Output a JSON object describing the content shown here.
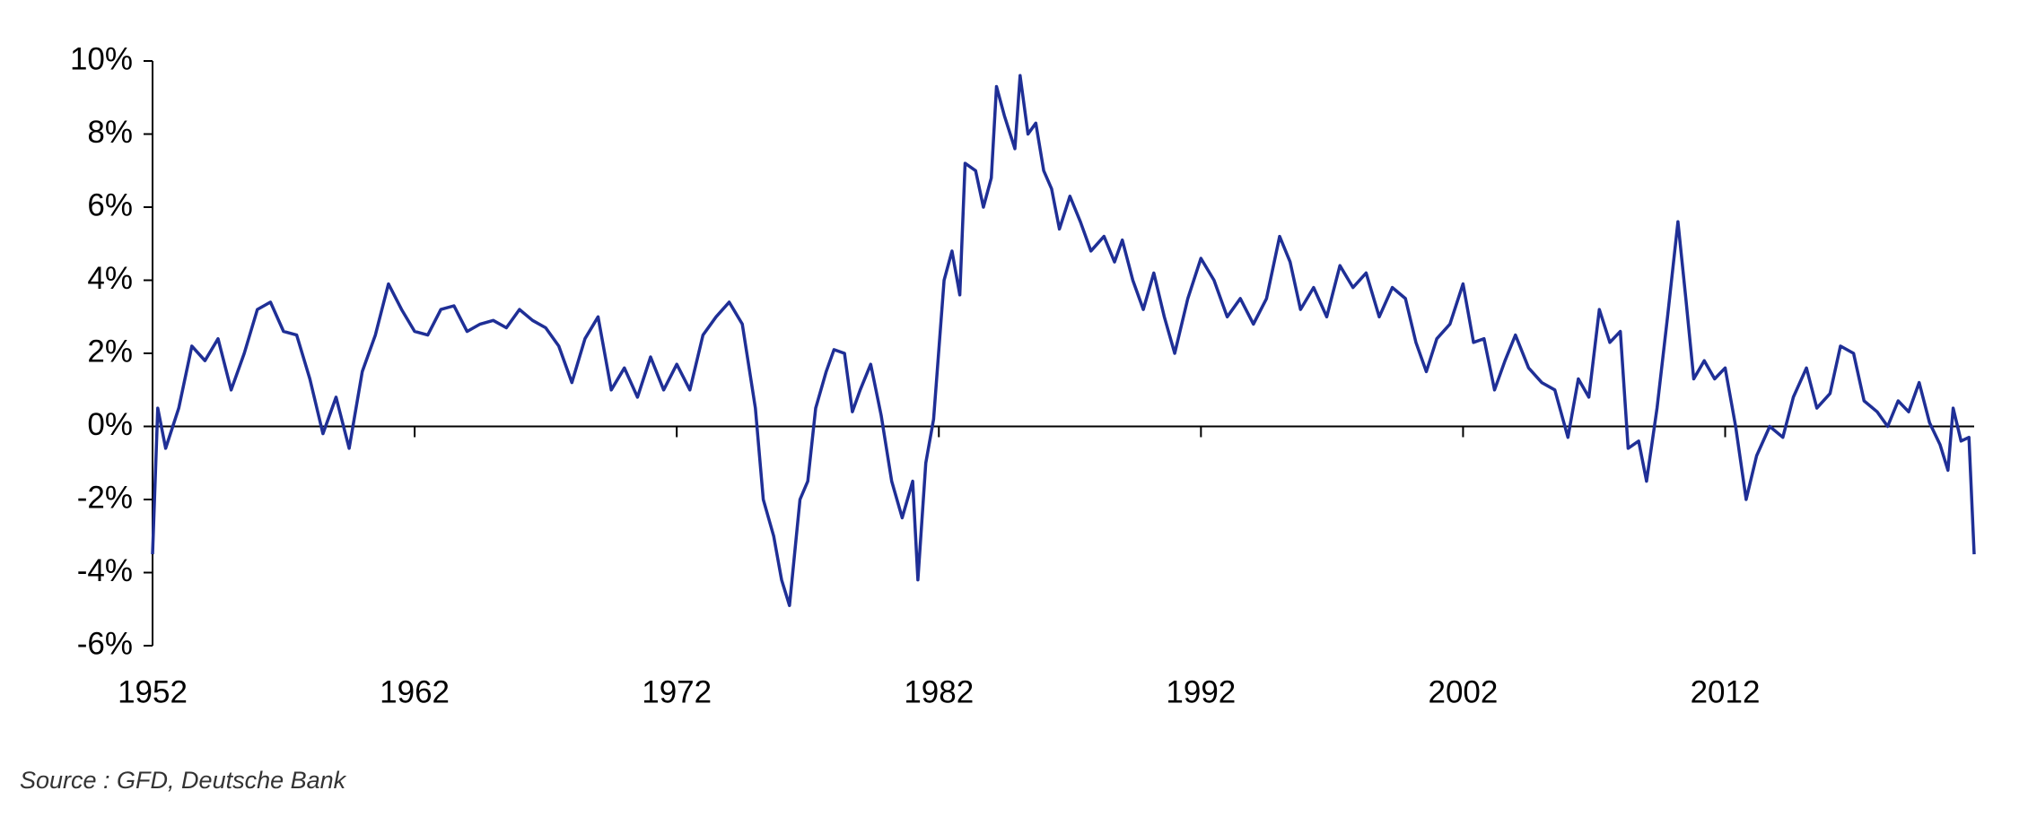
{
  "chart_data": {
    "type": "line",
    "source": "Source : GFD, Deutsche Bank",
    "xlim": [
      1952,
      2021.5
    ],
    "xticks": [
      1952,
      1962,
      1972,
      1982,
      1992,
      2002,
      2012
    ],
    "ylim": [
      -6,
      10
    ],
    "yticks": [
      {
        "value": -6,
        "label": "-6%"
      },
      {
        "value": -4,
        "label": "-4%"
      },
      {
        "value": -2,
        "label": "-2%"
      },
      {
        "value": 0,
        "label": "0%"
      },
      {
        "value": 2,
        "label": "2%"
      },
      {
        "value": 4,
        "label": "4%"
      },
      {
        "value": 6,
        "label": "6%"
      },
      {
        "value": 8,
        "label": "8%"
      },
      {
        "value": 10,
        "label": "10%"
      }
    ],
    "x": [
      1952,
      1952.2,
      1952.5,
      1953,
      1953.5,
      1954,
      1954.5,
      1955,
      1955.5,
      1956,
      1956.5,
      1957,
      1957.5,
      1958,
      1958.5,
      1959,
      1959.5,
      1960,
      1960.5,
      1961,
      1961.5,
      1962,
      1962.5,
      1963,
      1963.5,
      1964,
      1964.5,
      1965,
      1965.5,
      1966,
      1966.5,
      1967,
      1967.5,
      1968,
      1968.5,
      1969,
      1969.5,
      1970,
      1970.5,
      1971,
      1971.5,
      1972,
      1972.5,
      1973,
      1973.5,
      1974,
      1974.5,
      1975,
      1975.3,
      1975.7,
      1976,
      1976.3,
      1976.7,
      1977,
      1977.3,
      1977.7,
      1978,
      1978.4,
      1978.7,
      1979,
      1979.4,
      1979.8,
      1980.2,
      1980.6,
      1981,
      1981.2,
      1981.5,
      1981.8,
      1982.2,
      1982.5,
      1982.8,
      1983,
      1983.4,
      1983.7,
      1984,
      1984.2,
      1984.5,
      1984.9,
      1985.1,
      1985.4,
      1985.7,
      1986,
      1986.3,
      1986.6,
      1987,
      1987.4,
      1987.8,
      1988.3,
      1988.7,
      1989,
      1989.4,
      1989.8,
      1990.2,
      1990.6,
      1991,
      1991.5,
      1992,
      1992.5,
      1993,
      1993.5,
      1994,
      1994.5,
      1995,
      1995.4,
      1995.8,
      1996.3,
      1996.8,
      1997.3,
      1997.8,
      1998.3,
      1998.8,
      1999.3,
      1999.8,
      2000.2,
      2000.6,
      2001,
      2001.5,
      2002,
      2002.4,
      2002.8,
      2003.2,
      2003.6,
      2004,
      2004.5,
      2005,
      2005.5,
      2006,
      2006.4,
      2006.8,
      2007.2,
      2007.6,
      2008,
      2008.3,
      2008.7,
      2009,
      2009.4,
      2009.8,
      2010.2,
      2010.5,
      2010.8,
      2011.2,
      2011.6,
      2012,
      2012.4,
      2012.8,
      2013.2,
      2013.7,
      2014.2,
      2014.6,
      2015.1,
      2015.5,
      2016,
      2016.4,
      2016.9,
      2017.3,
      2017.8,
      2018.2,
      2018.6,
      2019,
      2019.4,
      2019.8,
      2020.2,
      2020.5,
      2020.7,
      2021,
      2021.3,
      2021.5
    ],
    "series": [
      {
        "color": "#1f2f96",
        "values": [
          -3.5,
          0.5,
          -0.6,
          0.5,
          2.2,
          1.8,
          2.4,
          1.0,
          2.0,
          3.2,
          3.4,
          2.6,
          2.5,
          1.3,
          -0.2,
          0.8,
          -0.6,
          1.5,
          2.5,
          3.9,
          3.2,
          2.6,
          2.5,
          3.2,
          3.3,
          2.6,
          2.8,
          2.9,
          2.7,
          3.2,
          2.9,
          2.7,
          2.2,
          1.2,
          2.4,
          3.0,
          1.0,
          1.6,
          0.8,
          1.9,
          1.0,
          1.7,
          1.0,
          2.5,
          3.0,
          3.4,
          2.8,
          0.5,
          -2.0,
          -3.0,
          -4.2,
          -4.9,
          -2.0,
          -1.5,
          0.5,
          1.5,
          2.1,
          2.0,
          0.4,
          1.0,
          1.7,
          0.3,
          -1.5,
          -2.5,
          -1.5,
          -4.2,
          -1.0,
          0.2,
          4.0,
          4.8,
          3.6,
          7.2,
          7.0,
          6.0,
          6.8,
          9.3,
          8.5,
          7.6,
          9.6,
          8.0,
          8.3,
          7.0,
          6.5,
          5.4,
          6.3,
          5.6,
          4.8,
          5.2,
          4.5,
          5.1,
          4.0,
          3.2,
          4.2,
          3.0,
          2.0,
          3.5,
          4.6,
          4.0,
          3.0,
          3.5,
          2.8,
          3.5,
          5.2,
          4.5,
          3.2,
          3.8,
          3.0,
          4.4,
          3.8,
          4.2,
          3.0,
          3.8,
          3.5,
          2.3,
          1.5,
          2.4,
          2.8,
          3.9,
          2.3,
          2.4,
          1.0,
          1.8,
          2.5,
          1.6,
          1.2,
          1.0,
          -0.3,
          1.3,
          0.8,
          3.2,
          2.3,
          2.6,
          -0.6,
          -0.4,
          -1.5,
          0.5,
          3.0,
          5.6,
          3.5,
          1.3,
          1.8,
          1.3,
          1.6,
          0.0,
          -2.0,
          -0.8,
          0.0,
          -0.3,
          0.8,
          1.6,
          0.5,
          0.9,
          2.2,
          2.0,
          0.7,
          0.4,
          0.0,
          0.7,
          0.4,
          1.2,
          0.1,
          -0.5,
          -1.2,
          0.5,
          -0.4,
          -0.3,
          -3.5
        ]
      }
    ]
  }
}
